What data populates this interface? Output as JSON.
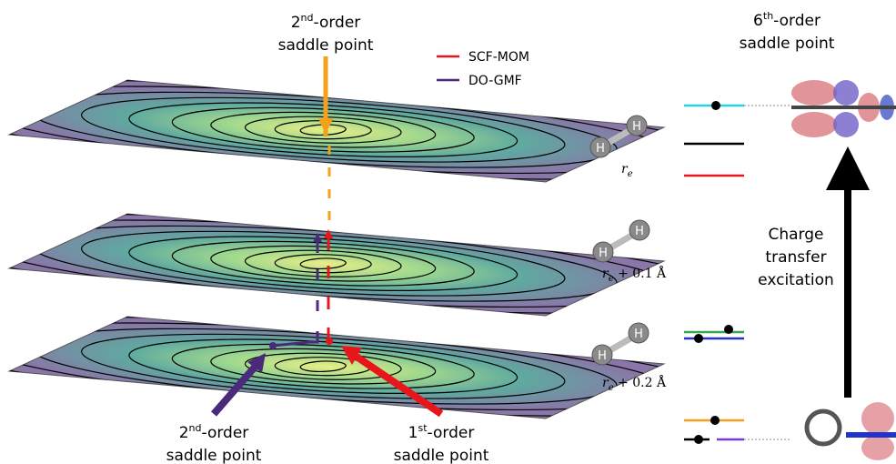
{
  "top_label": {
    "number": "2",
    "superscript": "nd",
    "suffix": "-order",
    "line2": "saddle point"
  },
  "legend": [
    {
      "label": "SCF-MOM",
      "color": "#e8161b"
    },
    {
      "label": "DO-GMF",
      "color": "#4b2a7b"
    }
  ],
  "right_label": {
    "number": "6",
    "superscript": "th",
    "suffix": "-order",
    "line2": "saddle point"
  },
  "planes": [
    {
      "symbol": "r",
      "subscript": "e"
    },
    {
      "symbol": "r",
      "subscript": "e",
      "offset": " + 0.1 Å"
    },
    {
      "symbol": "r",
      "subscript": "e",
      "offset": " + 0.2 Å"
    }
  ],
  "atom_label": "H",
  "excitation_label": [
    "Charge",
    "transfer",
    "excitation"
  ],
  "bottom_left_label": {
    "number": "2",
    "superscript": "nd",
    "suffix": "-order",
    "line2": "saddle point"
  },
  "bottom_right_label": {
    "number": "1",
    "superscript": "st",
    "suffix": "-order",
    "line2": "saddle point"
  }
}
